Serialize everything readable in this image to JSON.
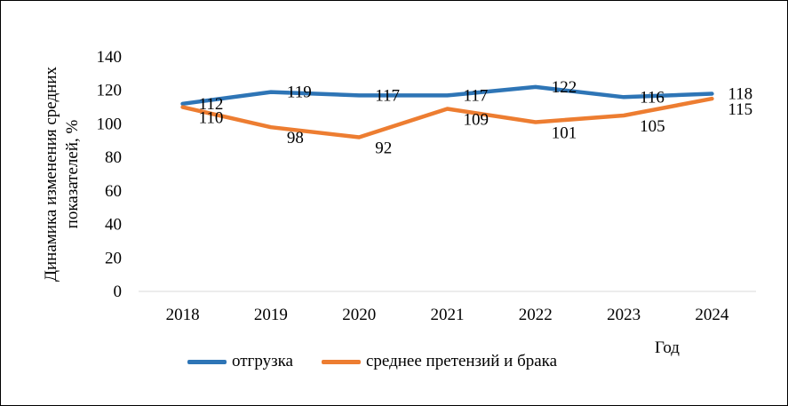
{
  "colors": {
    "series_0": "#2e75b6",
    "series_1": "#ed7d31",
    "gridline": "#d9d9d9"
  },
  "chart_data": {
    "type": "line",
    "title": "",
    "xlabel": "Год",
    "ylabel_lines": [
      "Динамика изменения средних",
      "показателей, %"
    ],
    "categories": [
      "2018",
      "2019",
      "2020",
      "2021",
      "2022",
      "2023",
      "2024"
    ],
    "ylim": [
      0,
      140
    ],
    "yticks": [
      "0",
      "20",
      "40",
      "60",
      "80",
      "100",
      "120",
      "140"
    ],
    "grid": false,
    "legend": "bottom",
    "series": [
      {
        "name": "отгрузка",
        "values": [
          112,
          119,
          117,
          117,
          122,
          116,
          118
        ]
      },
      {
        "name": "среднее претензий и брака",
        "values": [
          110,
          98,
          92,
          109,
          101,
          105,
          115
        ]
      }
    ]
  }
}
